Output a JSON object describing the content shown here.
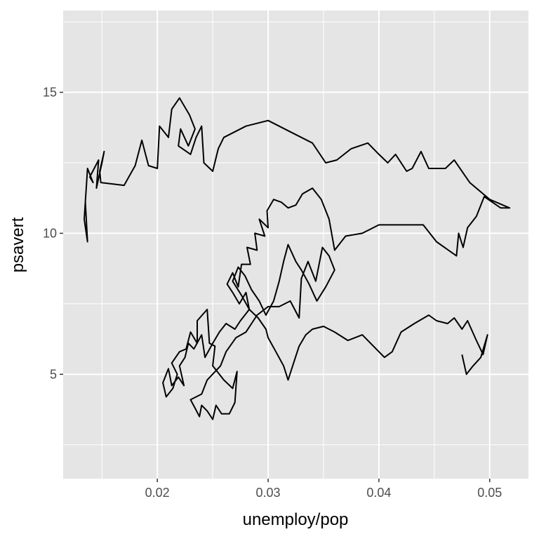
{
  "chart_data": {
    "type": "line",
    "title": "",
    "xlabel": "unemploy/pop",
    "ylabel": "psavert",
    "xlim": [
      0.0115,
      0.0535
    ],
    "ylim": [
      1.3,
      17.9
    ],
    "x_ticks": [
      0.02,
      0.03,
      0.04,
      0.05
    ],
    "x_tick_labels": [
      "0.02",
      "0.03",
      "0.04",
      "0.05"
    ],
    "y_ticks": [
      5,
      10,
      15
    ],
    "y_tick_labels": [
      "5",
      "10",
      "15"
    ],
    "grid": true,
    "panel_background": "#E5E5E5",
    "grid_color": "#FFFFFF",
    "line_color": "#000000",
    "series": [
      {
        "values": [
          [
            0.0135,
            11.1
          ],
          [
            0.0137,
            9.7
          ],
          [
            0.0134,
            10.5
          ],
          [
            0.0137,
            12.3
          ],
          [
            0.0142,
            11.8
          ],
          [
            0.0139,
            12.0
          ],
          [
            0.0147,
            12.6
          ],
          [
            0.0145,
            11.6
          ],
          [
            0.015,
            12.5
          ],
          [
            0.0152,
            12.9
          ],
          [
            0.0148,
            12.2
          ],
          [
            0.0149,
            11.8
          ],
          [
            0.017,
            11.7
          ],
          [
            0.018,
            12.4
          ],
          [
            0.0186,
            13.3
          ],
          [
            0.0192,
            12.4
          ],
          [
            0.02,
            12.3
          ],
          [
            0.0202,
            13.8
          ],
          [
            0.021,
            13.4
          ],
          [
            0.0213,
            14.4
          ],
          [
            0.022,
            14.8
          ],
          [
            0.0229,
            14.2
          ],
          [
            0.0234,
            13.7
          ],
          [
            0.0228,
            13.1
          ],
          [
            0.0221,
            13.7
          ],
          [
            0.0219,
            13.1
          ],
          [
            0.023,
            12.8
          ],
          [
            0.0235,
            13.4
          ],
          [
            0.024,
            13.8
          ],
          [
            0.0242,
            12.5
          ],
          [
            0.025,
            12.2
          ],
          [
            0.0255,
            13.0
          ],
          [
            0.026,
            13.4
          ],
          [
            0.028,
            13.8
          ],
          [
            0.03,
            14.0
          ],
          [
            0.032,
            13.6
          ],
          [
            0.034,
            13.2
          ],
          [
            0.0352,
            12.5
          ],
          [
            0.0362,
            12.6
          ],
          [
            0.0375,
            13.0
          ],
          [
            0.039,
            13.2
          ],
          [
            0.04,
            12.8
          ],
          [
            0.0408,
            12.5
          ],
          [
            0.0415,
            12.8
          ],
          [
            0.0425,
            12.2
          ],
          [
            0.043,
            12.3
          ],
          [
            0.0438,
            12.9
          ],
          [
            0.0445,
            12.3
          ],
          [
            0.046,
            12.3
          ],
          [
            0.0468,
            12.6
          ],
          [
            0.0482,
            11.8
          ],
          [
            0.05,
            11.2
          ],
          [
            0.0518,
            10.9
          ],
          [
            0.051,
            10.9
          ],
          [
            0.0495,
            11.3
          ],
          [
            0.0488,
            10.6
          ],
          [
            0.048,
            10.2
          ],
          [
            0.0476,
            9.5
          ],
          [
            0.0472,
            10.0
          ],
          [
            0.047,
            9.2
          ],
          [
            0.0452,
            9.7
          ],
          [
            0.044,
            10.3
          ],
          [
            0.04,
            10.3
          ],
          [
            0.0385,
            10.0
          ],
          [
            0.037,
            9.9
          ],
          [
            0.036,
            9.4
          ],
          [
            0.0355,
            10.5
          ],
          [
            0.0348,
            11.2
          ],
          [
            0.034,
            11.6
          ],
          [
            0.0331,
            11.4
          ],
          [
            0.0325,
            11.0
          ],
          [
            0.0318,
            10.9
          ],
          [
            0.0312,
            11.1
          ],
          [
            0.0305,
            11.2
          ],
          [
            0.0299,
            10.8
          ],
          [
            0.03,
            10.2
          ],
          [
            0.0292,
            10.5
          ],
          [
            0.0297,
            9.9
          ],
          [
            0.0288,
            10.0
          ],
          [
            0.029,
            9.4
          ],
          [
            0.0281,
            9.5
          ],
          [
            0.0284,
            8.9
          ],
          [
            0.0276,
            8.9
          ],
          [
            0.0273,
            8.1
          ],
          [
            0.0268,
            8.6
          ],
          [
            0.0263,
            8.2
          ],
          [
            0.0268,
            7.9
          ],
          [
            0.0274,
            7.5
          ],
          [
            0.028,
            7.9
          ],
          [
            0.0283,
            7.3
          ],
          [
            0.0275,
            6.9
          ],
          [
            0.027,
            6.6
          ],
          [
            0.0262,
            6.8
          ],
          [
            0.0256,
            6.5
          ],
          [
            0.025,
            6.1
          ],
          [
            0.0243,
            5.6
          ],
          [
            0.024,
            6.4
          ],
          [
            0.0233,
            5.9
          ],
          [
            0.0228,
            6.1
          ],
          [
            0.0225,
            5.6
          ],
          [
            0.022,
            5.3
          ],
          [
            0.0224,
            4.6
          ],
          [
            0.0219,
            4.9
          ],
          [
            0.0213,
            4.6
          ],
          [
            0.021,
            5.2
          ],
          [
            0.0205,
            4.7
          ],
          [
            0.0208,
            4.2
          ],
          [
            0.0214,
            4.5
          ],
          [
            0.0218,
            5.0
          ],
          [
            0.0213,
            5.4
          ],
          [
            0.022,
            5.8
          ],
          [
            0.0226,
            5.9
          ],
          [
            0.023,
            6.5
          ],
          [
            0.0236,
            6.1
          ],
          [
            0.0236,
            6.9
          ],
          [
            0.0245,
            7.3
          ],
          [
            0.0247,
            6.1
          ],
          [
            0.0252,
            6.0
          ],
          [
            0.025,
            5.3
          ],
          [
            0.026,
            4.8
          ],
          [
            0.0268,
            4.5
          ],
          [
            0.0272,
            5.1
          ],
          [
            0.027,
            4.0
          ],
          [
            0.0265,
            3.6
          ],
          [
            0.0258,
            3.6
          ],
          [
            0.0253,
            3.9
          ],
          [
            0.025,
            3.4
          ],
          [
            0.0245,
            3.7
          ],
          [
            0.024,
            3.9
          ],
          [
            0.0238,
            3.5
          ],
          [
            0.0234,
            3.8
          ],
          [
            0.023,
            4.1
          ],
          [
            0.024,
            4.3
          ],
          [
            0.0245,
            4.8
          ],
          [
            0.0257,
            5.3
          ],
          [
            0.0262,
            5.8
          ],
          [
            0.0271,
            6.3
          ],
          [
            0.028,
            6.5
          ],
          [
            0.029,
            7.1
          ],
          [
            0.03,
            7.4
          ],
          [
            0.031,
            7.4
          ],
          [
            0.032,
            7.6
          ],
          [
            0.0328,
            7.0
          ],
          [
            0.033,
            8.4
          ],
          [
            0.0336,
            9.0
          ],
          [
            0.0343,
            8.3
          ],
          [
            0.0349,
            9.5
          ],
          [
            0.0355,
            9.2
          ],
          [
            0.036,
            8.7
          ],
          [
            0.0352,
            8.1
          ],
          [
            0.0344,
            7.6
          ],
          [
            0.0337,
            8.2
          ],
          [
            0.033,
            8.7
          ],
          [
            0.0325,
            9.0
          ],
          [
            0.0318,
            9.6
          ],
          [
            0.0314,
            9.0
          ],
          [
            0.031,
            8.3
          ],
          [
            0.0305,
            7.6
          ],
          [
            0.0298,
            7.1
          ],
          [
            0.0292,
            7.6
          ],
          [
            0.0285,
            8.0
          ],
          [
            0.0279,
            8.5
          ],
          [
            0.0273,
            8.8
          ],
          [
            0.0268,
            8.3
          ],
          [
            0.0276,
            7.8
          ],
          [
            0.0283,
            7.3
          ],
          [
            0.0291,
            7.0
          ],
          [
            0.0298,
            6.6
          ],
          [
            0.03,
            6.3
          ],
          [
            0.0307,
            5.8
          ],
          [
            0.0314,
            5.3
          ],
          [
            0.0318,
            4.8
          ],
          [
            0.0323,
            5.4
          ],
          [
            0.0328,
            6.0
          ],
          [
            0.0334,
            6.4
          ],
          [
            0.034,
            6.6
          ],
          [
            0.035,
            6.7
          ],
          [
            0.036,
            6.5
          ],
          [
            0.0372,
            6.2
          ],
          [
            0.0385,
            6.4
          ],
          [
            0.0395,
            6.0
          ],
          [
            0.0405,
            5.6
          ],
          [
            0.0412,
            5.8
          ],
          [
            0.042,
            6.5
          ],
          [
            0.0432,
            6.8
          ],
          [
            0.0445,
            7.1
          ],
          [
            0.0452,
            6.9
          ],
          [
            0.0462,
            6.8
          ],
          [
            0.0468,
            7.0
          ],
          [
            0.0475,
            6.6
          ],
          [
            0.048,
            6.9
          ],
          [
            0.0488,
            6.2
          ],
          [
            0.0494,
            5.7
          ],
          [
            0.0498,
            6.4
          ],
          [
            0.0492,
            5.6
          ],
          [
            0.0485,
            5.3
          ],
          [
            0.0479,
            5.0
          ],
          [
            0.0475,
            5.7
          ]
        ]
      }
    ]
  }
}
